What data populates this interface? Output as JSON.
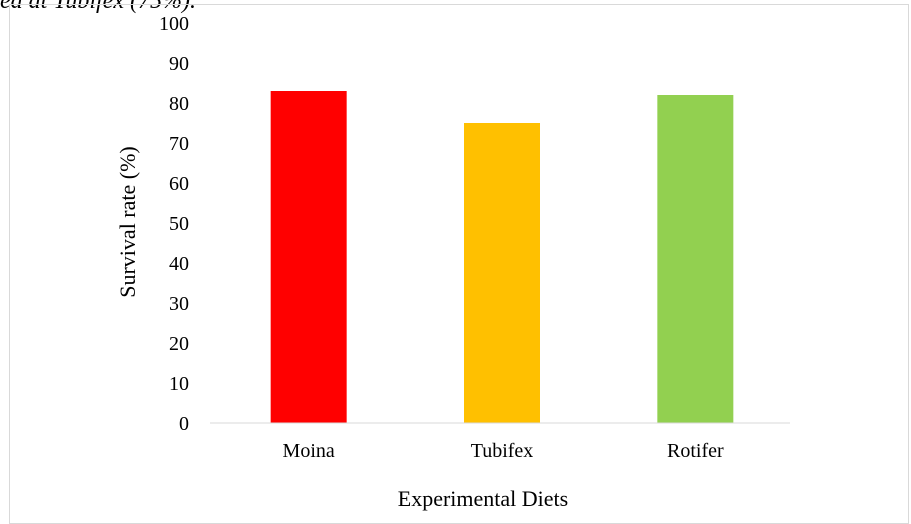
{
  "caption_fragment": "ed at Tubifex (75%).",
  "chart_data": {
    "type": "bar",
    "categories": [
      "Moina",
      "Tubifex",
      "Rotifer"
    ],
    "values": [
      83,
      75,
      82
    ],
    "colors": [
      "#ff0000",
      "#ffc000",
      "#92d050"
    ],
    "xlabel": "Experimental Diets",
    "ylabel": "Survival rate (%)",
    "ylim": [
      0,
      100
    ],
    "yticks": [
      0,
      10,
      20,
      30,
      40,
      50,
      60,
      70,
      80,
      90,
      100
    ],
    "grid": false,
    "legend": "none"
  }
}
